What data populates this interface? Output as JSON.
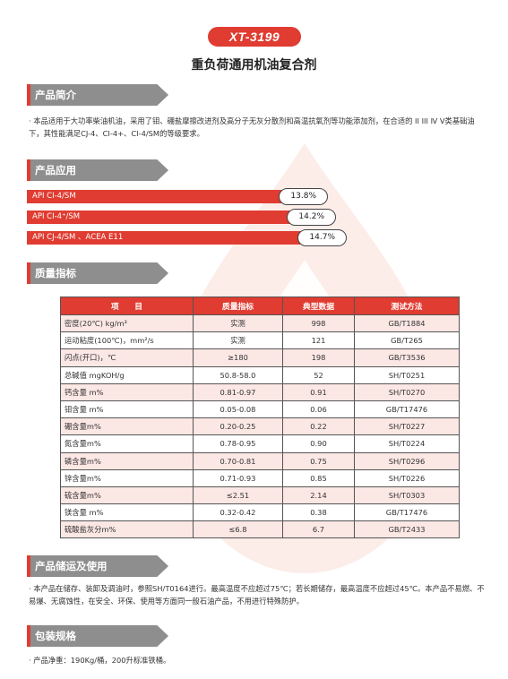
{
  "header": {
    "code": "XT-3199",
    "title": "重负荷通用机油复合剂"
  },
  "sections": {
    "intro": {
      "title": "产品简介",
      "text": "· 本品适用于大功率柴油机油，采用了钼、硼盐摩擦改进剂及高分子无灰分散剂和高温抗氧剂等功能添加剂，在合适的 II III Ⅳ V类基础油下，其性能满足CJ-4、CI-4+、CI-4/SM的等级要求。"
    },
    "application": {
      "title": "产品应用",
      "bar_color": "#e03c31",
      "items": [
        {
          "label": "API CI-4/SM",
          "pct": "13.8%",
          "value": 13.8
        },
        {
          "label": "API CI-4⁺/SM",
          "pct": "14.2%",
          "value": 14.2
        },
        {
          "label": "API CJ-4/SM 、ACEA E11",
          "pct": "14.7%",
          "value": 14.7
        }
      ]
    },
    "quality": {
      "title": "质量指标",
      "columns": [
        "项　　目",
        "质量指标",
        "典型数据",
        "测试方法"
      ],
      "rows": [
        [
          "密度(20℃) kg/m³",
          "实测",
          "998",
          "GB/T1884"
        ],
        [
          "运动粘度(100℃)，mm²/s",
          "实测",
          "121",
          "GB/T265"
        ],
        [
          "闪点(开口)，℃",
          "≥180",
          "198",
          "GB/T3536"
        ],
        [
          "总碱值 mgKOH/g",
          "50.8-58.0",
          "52",
          "SH/T0251"
        ],
        [
          "钙含量 m%",
          "0.81-0.97",
          "0.91",
          "SH/T0270"
        ],
        [
          "钼含量 m%",
          "0.05-0.08",
          "0.06",
          "GB/T17476"
        ],
        [
          "硼含量m%",
          "0.20-0.25",
          "0.22",
          "SH/T0227"
        ],
        [
          "氮含量m%",
          "0.78-0.95",
          "0.90",
          "SH/T0224"
        ],
        [
          "磷含量m%",
          "0.70-0.81",
          "0.75",
          "SH/T0296"
        ],
        [
          "锌含量m%",
          "0.71-0.93",
          "0.85",
          "SH/T0226"
        ],
        [
          "硫含量m%",
          "≤2.51",
          "2.14",
          "SH/T0303"
        ],
        [
          "镁含量 m%",
          "0.32-0.42",
          "0.38",
          "GB/T17476"
        ],
        [
          "硫酸盐灰分m%",
          "≤6.8",
          "6.7",
          "GB/T2433"
        ]
      ]
    },
    "storage": {
      "title": "产品储运及使用",
      "text": "· 本产品在储存、装卸及调油时，参照SH/T0164进行。最高温度不应超过75℃；若长期储存，最高温度不应超过45℃。本产品不易燃、不易爆、无腐蚀性，在安全、环保、使用等方面同一般石油产品，不用进行特殊防护。"
    },
    "packaging": {
      "title": "包装规格",
      "text": "· 产品净重：190Kg/桶，200升标准铁桶。"
    }
  }
}
